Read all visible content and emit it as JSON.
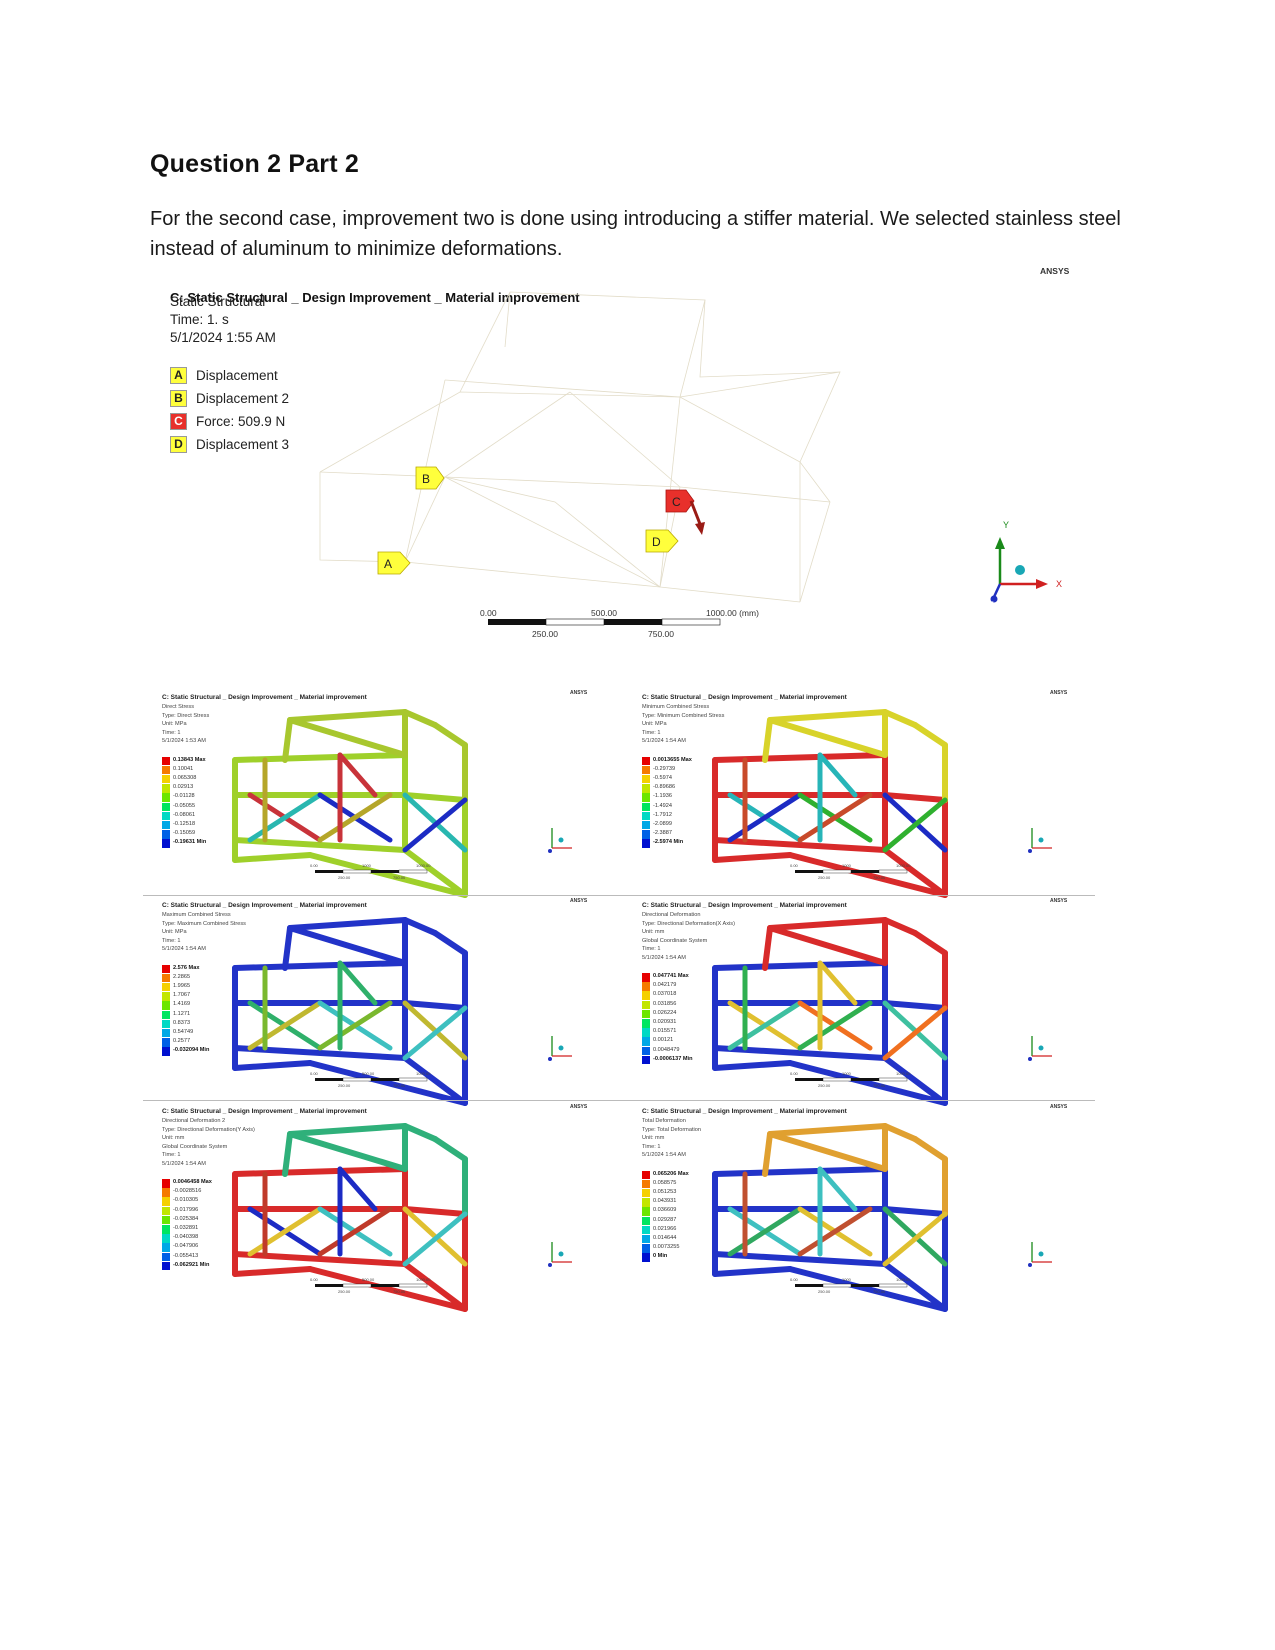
{
  "heading": "Question 2 Part 2",
  "intro": "For the second case, improvement two is done using introducing a stiffer material. We selected stainless steel instead of aluminum to minimize deformations.",
  "main_figure": {
    "brand": "ANSYS",
    "title": "C: Static Structural _ Design Improvement _ Material improvement",
    "lines": [
      "Static Structural",
      "Time: 1. s",
      "5/1/2024 1:55 AM"
    ],
    "legend": [
      {
        "key": "A",
        "label": "Displacement",
        "color": "#ffff3c"
      },
      {
        "key": "B",
        "label": "Displacement 2",
        "color": "#ffff3c"
      },
      {
        "key": "C",
        "label": "Force: 509.9 N",
        "color": "#e8302b"
      },
      {
        "key": "D",
        "label": "Displacement 3",
        "color": "#ffff3c"
      }
    ],
    "scale_top": [
      "0.00",
      "500.00",
      "1000.00 (mm)"
    ],
    "scale_bottom": [
      "250.00",
      "750.00"
    ],
    "triad": {
      "x": "X",
      "y": "Y",
      "z": "Z"
    }
  },
  "panels": [
    {
      "title": "C: Static Structural _ Design Improvement _ Material improvement",
      "lines": [
        "Direct Stress",
        "Type: Direct Stress",
        "Unit: MPa",
        "Time: 1",
        "5/1/2024 1:53 AM"
      ],
      "scale_labels": [
        "0.13843 Max",
        "0.10041",
        "0.065308",
        "0.02913",
        "-0.01128",
        "-0.05055",
        "-0.08061",
        "-0.12518",
        "-0.15059",
        "-0.19631 Min"
      ],
      "scale_top": [
        "0.00",
        "1000",
        "1000.00"
      ],
      "scale_bottom": [
        "250.00",
        "750.00"
      ],
      "brand": "ANSYS"
    },
    {
      "title": "C: Static Structural _ Design Improvement _ Material improvement",
      "lines": [
        "Minimum Combined Stress",
        "Type: Minimum Combined Stress",
        "Unit: MPa",
        "Time: 1",
        "5/1/2024 1:54 AM"
      ],
      "scale_labels": [
        "0.0013655 Max",
        "-0.29739",
        "-0.5974",
        "-0.89686",
        "-1.1936",
        "-1.4924",
        "-1.7912",
        "-2.0899",
        "-2.3887",
        "-2.5974 Min"
      ],
      "scale_top": [
        "0.00",
        "1000",
        "1000.00"
      ],
      "scale_bottom": [
        "250.00",
        "750.00"
      ],
      "brand": "ANSYS"
    },
    {
      "title": "C: Static Structural _ Design Improvement _ Material improvement",
      "lines": [
        "Maximum Combined Stress",
        "Type: Maximum Combined Stress",
        "Unit: MPa",
        "Time: 1",
        "5/1/2024 1:54 AM"
      ],
      "scale_labels": [
        "2.576 Max",
        "2.2865",
        "1.9965",
        "1.7067",
        "1.4169",
        "1.1271",
        "0.8373",
        "0.54749",
        "0.2577",
        "-0.032094 Min"
      ],
      "scale_top": [
        "0.00",
        "500.00",
        "1000.00"
      ],
      "scale_bottom": [
        "250.00",
        "750.00"
      ],
      "brand": "ANSYS"
    },
    {
      "title": "C: Static Structural _ Design Improvement _ Material improvement",
      "lines": [
        "Directional Deformation",
        "Type: Directional Deformation(X Axis)",
        "Unit: mm",
        "Global Coordinate System",
        "Time: 1",
        "5/1/2024 1:54 AM"
      ],
      "scale_labels": [
        "0.047741 Max",
        "0.042179",
        "0.037018",
        "0.031856",
        "0.026224",
        "0.020931",
        "0.015571",
        "0.00121",
        "0.0048479",
        "-0.0006137 Min"
      ],
      "scale_top": [
        "0.00",
        "1000",
        "1000.00"
      ],
      "scale_bottom": [
        "250.00",
        "750.00"
      ],
      "brand": "ANSYS"
    },
    {
      "title": "C: Static Structural _ Design Improvement _ Material improvement",
      "lines": [
        "Directional Deformation 2",
        "Type: Directional Deformation(Y Axis)",
        "Unit: mm",
        "Global Coordinate System",
        "Time: 1",
        "5/1/2024 1:54 AM"
      ],
      "scale_labels": [
        "0.0046458 Max",
        "-0.0028516",
        "-0.010305",
        "-0.017996",
        "-0.025384",
        "-0.032891",
        "-0.040398",
        "-0.047906",
        "-0.055413",
        "-0.062921 Min"
      ],
      "scale_top": [
        "0.00",
        "500.00",
        "1000.00"
      ],
      "scale_bottom": [
        "250.00",
        "750.00"
      ],
      "brand": "ANSYS"
    },
    {
      "title": "C: Static Structural _ Design Improvement _ Material improvement",
      "lines": [
        "Total Deformation",
        "Type: Total Deformation",
        "Unit: mm",
        "Time: 1",
        "5/1/2024 1:54 AM"
      ],
      "scale_labels": [
        "0.065206 Max",
        "0.058575",
        "0.051253",
        "0.043931",
        "0.036609",
        "0.029287",
        "0.021966",
        "0.014644",
        "0.0073255",
        "0 Min"
      ],
      "scale_top": [
        "0.00",
        "1000",
        "1000.00"
      ],
      "scale_bottom": [
        "250.00",
        "750.00"
      ],
      "brand": "ANSYS"
    }
  ]
}
